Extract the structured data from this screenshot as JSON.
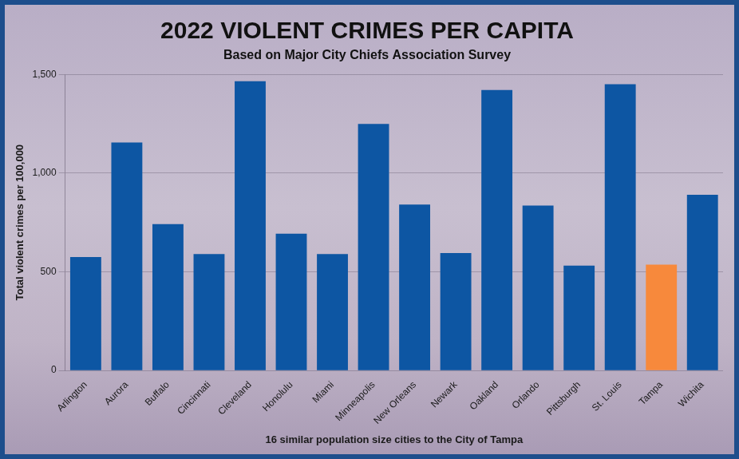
{
  "chart_data": {
    "type": "bar",
    "title": "2022 VIOLENT CRIMES PER CAPITA",
    "subtitle": "Based on Major City Chiefs Association Survey",
    "xlabel": "16 similar population size cities to the City of Tampa",
    "ylabel": "Total violent crimes per 100,000",
    "categories": [
      "Arlington",
      "Aurora",
      "Buffalo",
      "Cincinnati",
      "Cleveland",
      "Honolulu",
      "Miami",
      "Minneapolis",
      "New Orleans",
      "Newark",
      "Oakland",
      "Orlando",
      "Pittsburgh",
      "St. Louis",
      "Tampa",
      "Wichita"
    ],
    "values": [
      575,
      1155,
      742,
      590,
      1465,
      693,
      590,
      1249,
      841,
      595,
      1421,
      836,
      531,
      1450,
      536,
      890
    ],
    "colors": [
      "#0d56a3",
      "#0d56a3",
      "#0d56a3",
      "#0d56a3",
      "#0d56a3",
      "#0d56a3",
      "#0d56a3",
      "#0d56a3",
      "#0d56a3",
      "#0d56a3",
      "#0d56a3",
      "#0d56a3",
      "#0d56a3",
      "#0d56a3",
      "#f7893c",
      "#0d56a3"
    ],
    "ylim": [
      0,
      1500
    ],
    "yticks": [
      0,
      500,
      {
        "value": 1000,
        "label": "1,000"
      },
      {
        "value": 1500,
        "label": "1,500"
      }
    ],
    "grid": true
  }
}
